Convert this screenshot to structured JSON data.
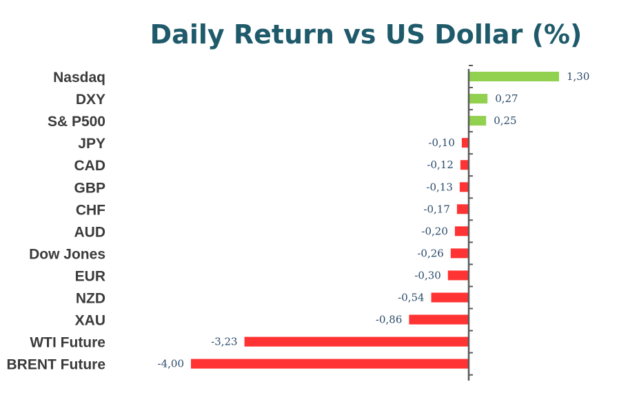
{
  "chart_data": {
    "type": "bar",
    "orientation": "horizontal",
    "title": "Daily Return vs US Dollar (%)",
    "categories": [
      "Nasdaq",
      "DXY",
      "S& P500",
      "JPY",
      "CAD",
      "GBP",
      "CHF",
      "AUD",
      "Dow Jones",
      "EUR",
      "NZD",
      "XAU",
      "WTI Future",
      "BRENT Future"
    ],
    "values": [
      1.3,
      0.27,
      0.25,
      -0.1,
      -0.12,
      -0.13,
      -0.17,
      -0.2,
      -0.26,
      -0.3,
      -0.54,
      -0.86,
      -3.23,
      -4.0
    ],
    "value_labels": [
      "1,30",
      "0,27",
      "0,25",
      "-0,10",
      "-0,12",
      "-0,13",
      "-0,17",
      "-0,20",
      "-0,26",
      "-0,30",
      "-0,54",
      "-0,86",
      "-3,23",
      "-4,00"
    ],
    "xlim": [
      -4.0,
      1.3
    ],
    "grid": false,
    "legend": "none",
    "colors": {
      "positive": "#92d050",
      "negative": "#ff3333",
      "title": "#1f5a6b",
      "axis": "#595959",
      "category_text": "#3a3a3a",
      "value_text": "#2a4a6a"
    }
  }
}
